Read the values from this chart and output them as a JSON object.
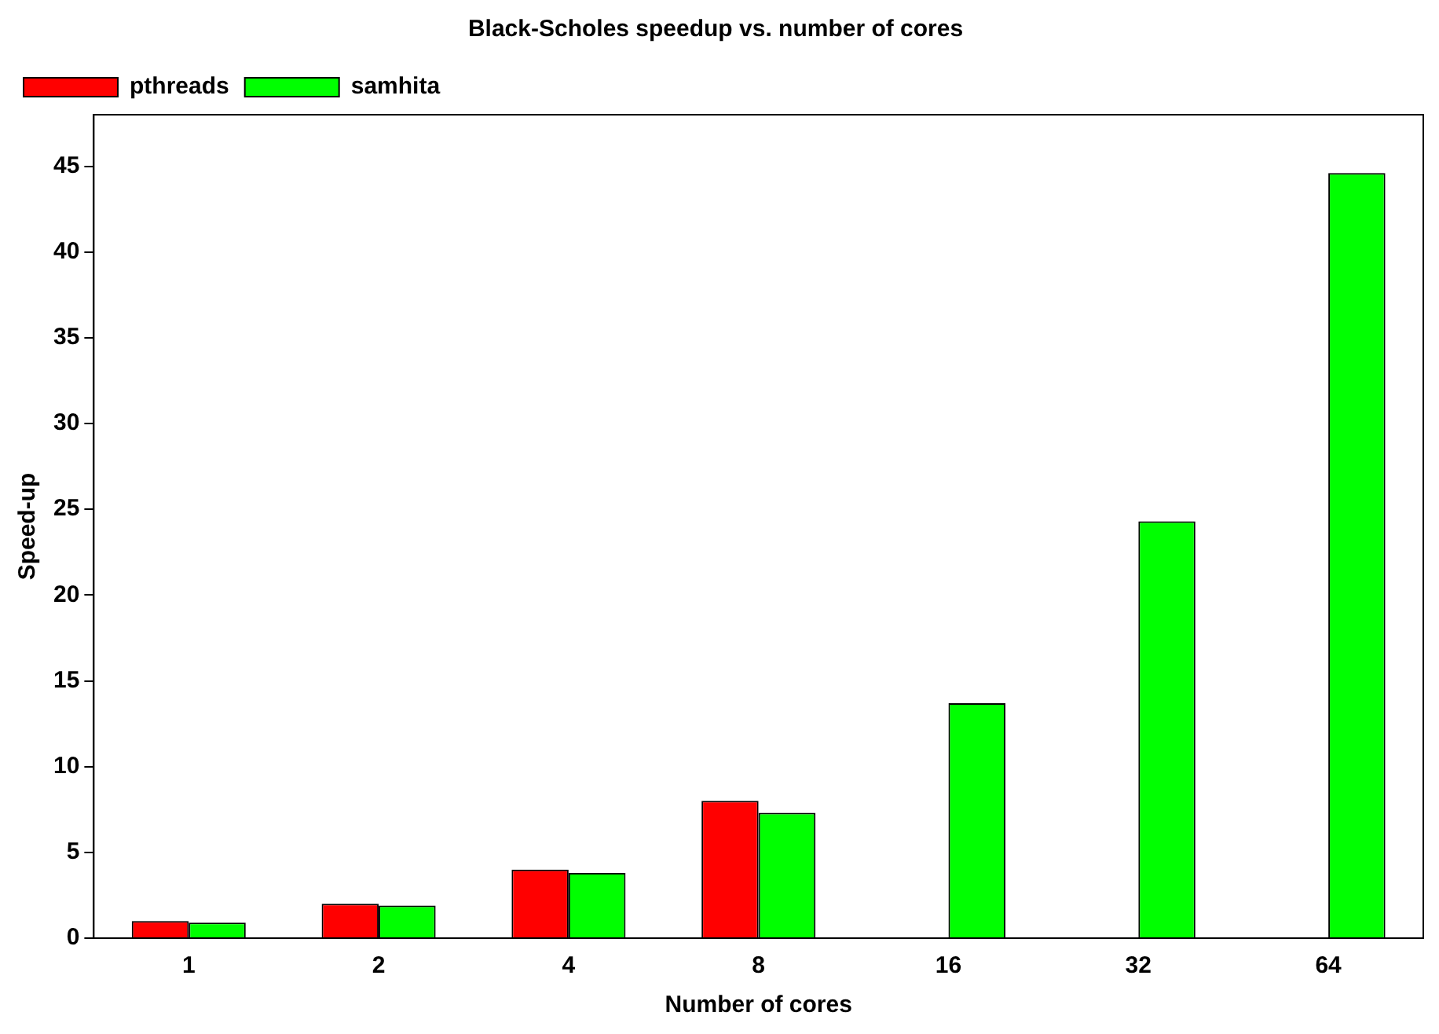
{
  "chart_data": {
    "type": "bar",
    "title": "Black-Scholes speedup vs. number of cores",
    "xlabel": "Number of cores",
    "ylabel": "Speed-up",
    "categories": [
      "1",
      "2",
      "4",
      "8",
      "16",
      "32",
      "64"
    ],
    "series": [
      {
        "name": "pthreads",
        "color": "#ff0000",
        "values": [
          1.0,
          2.0,
          4.0,
          8.0,
          null,
          null,
          null
        ]
      },
      {
        "name": "samhita",
        "color": "#00ff00",
        "values": [
          0.9,
          1.9,
          3.8,
          7.3,
          13.7,
          24.3,
          44.6
        ]
      }
    ],
    "ylim": [
      0,
      48
    ],
    "yticks": [
      0,
      5,
      10,
      15,
      20,
      25,
      30,
      35,
      40,
      45
    ],
    "grid": false,
    "legend": "top left"
  }
}
